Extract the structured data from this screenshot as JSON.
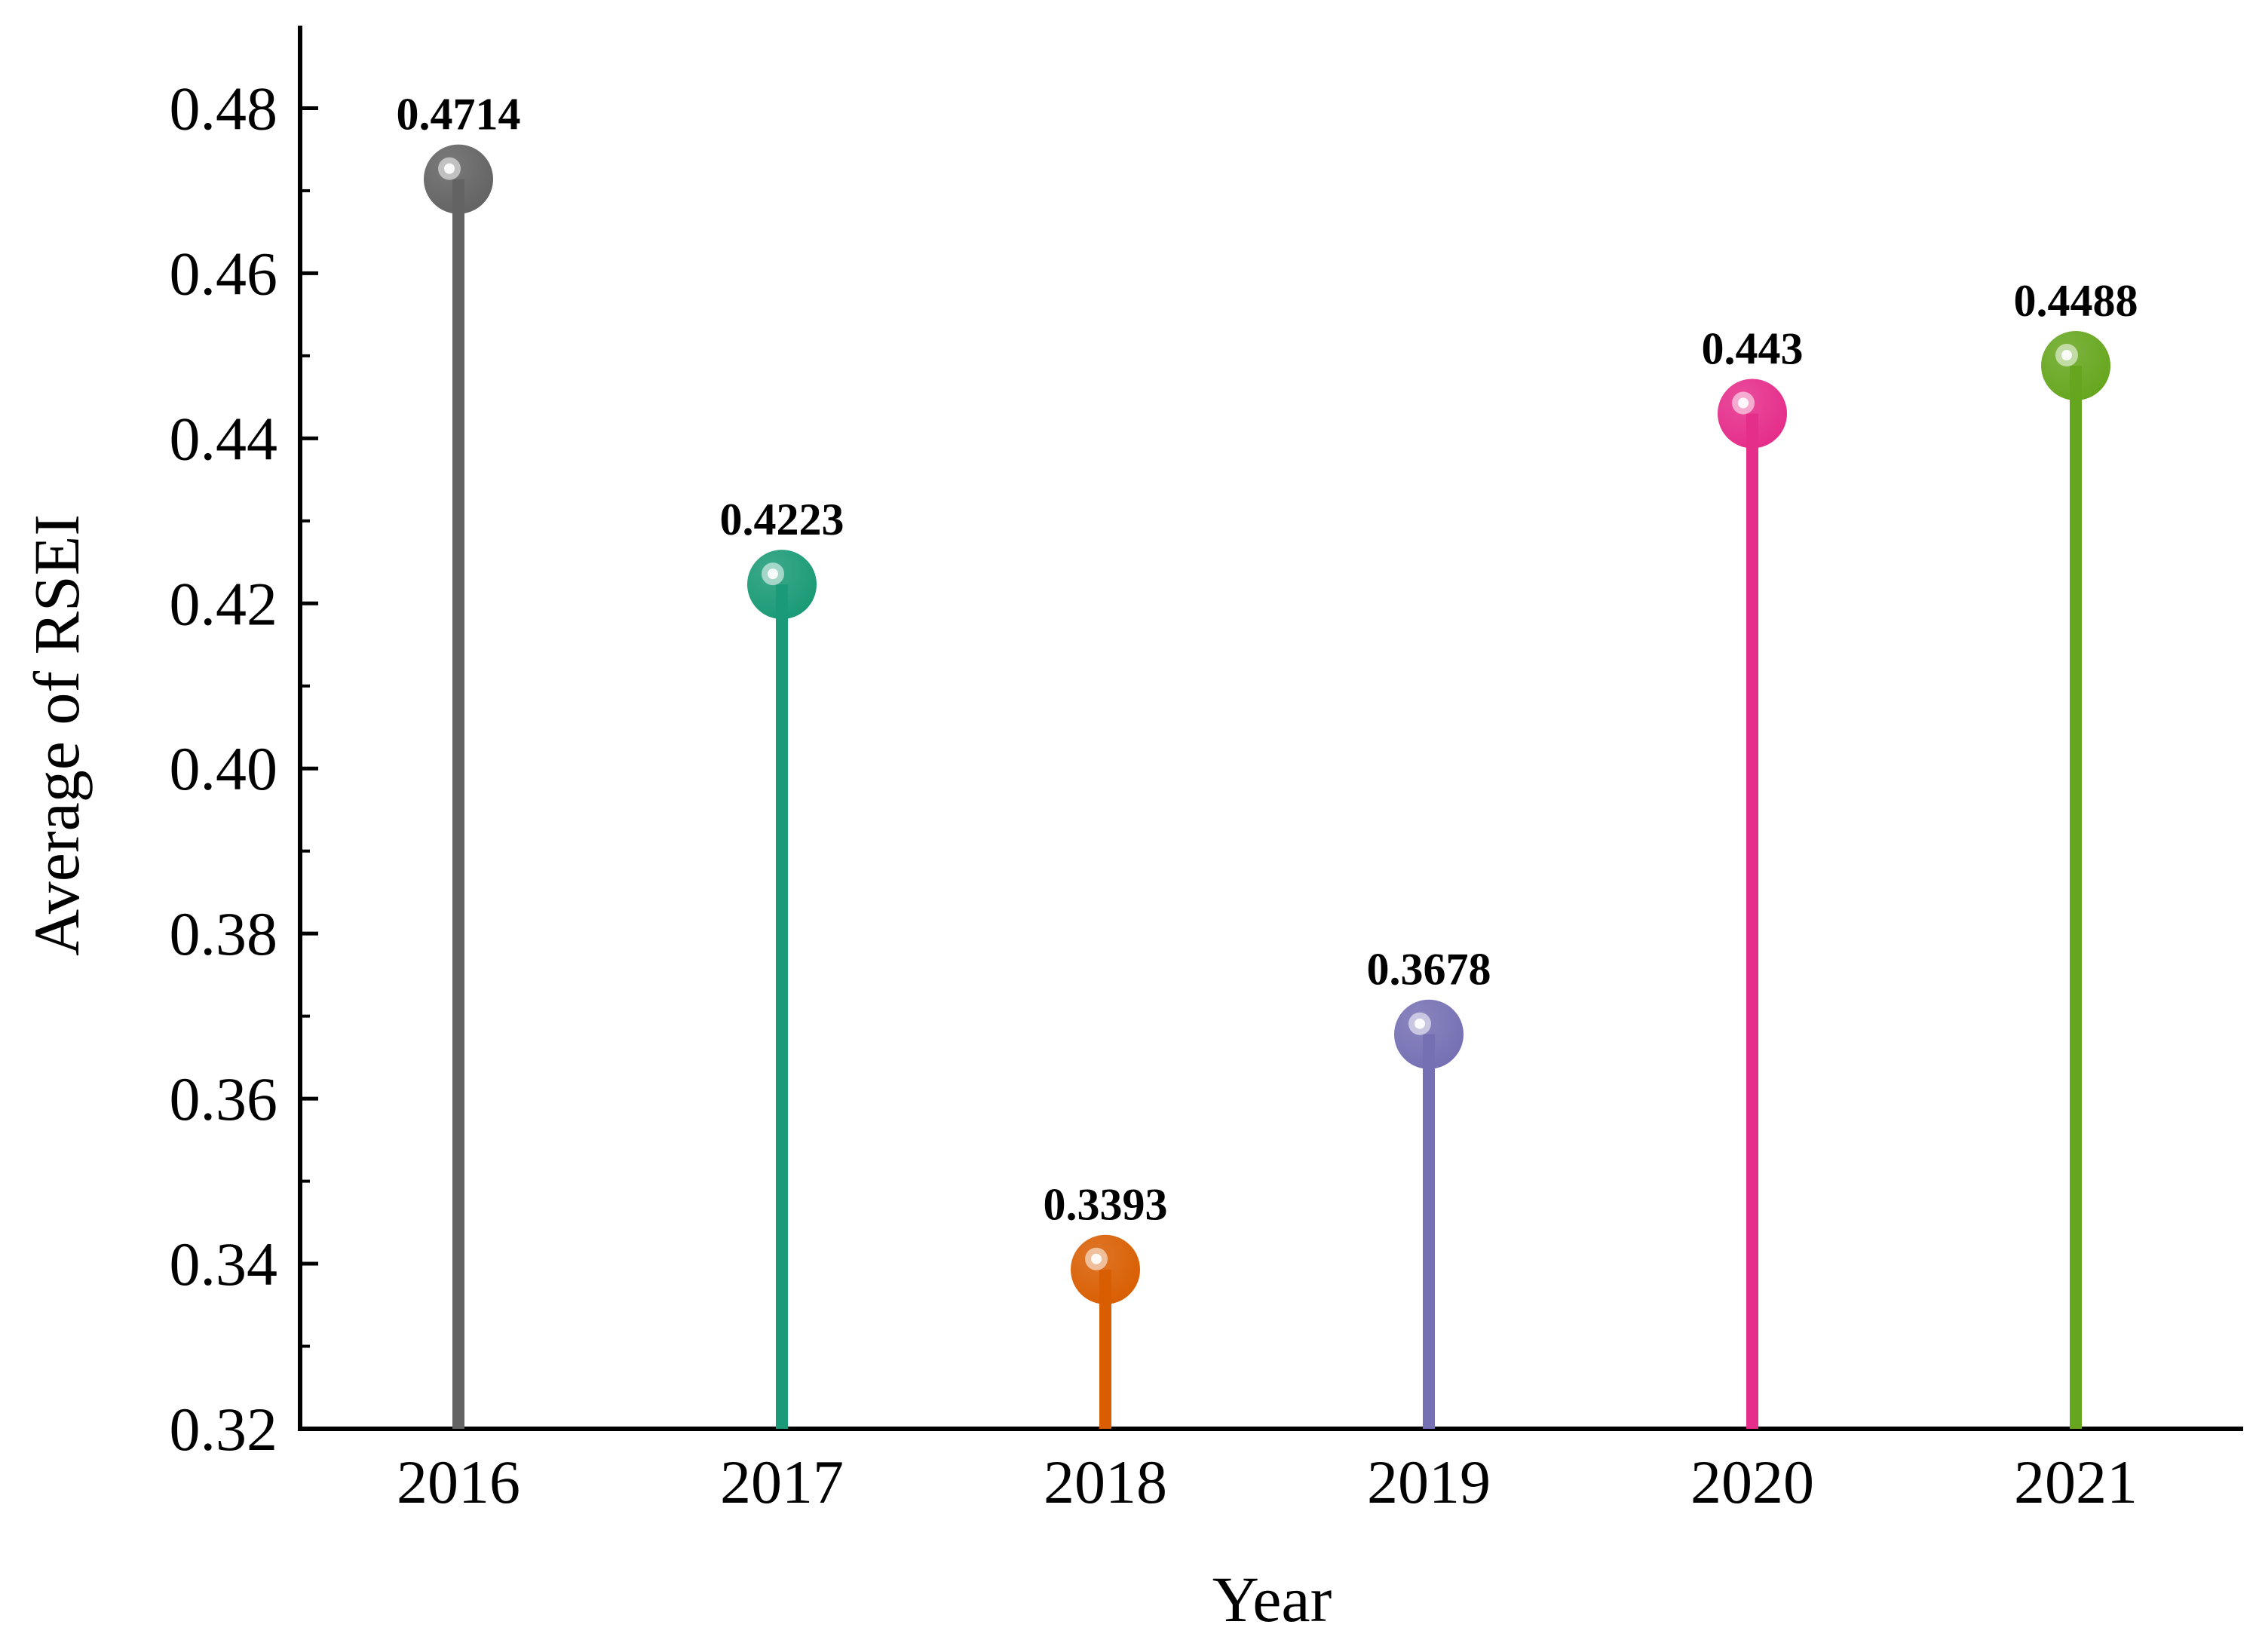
{
  "chart_data": {
    "type": "lollipop",
    "title": "",
    "xlabel": "Year",
    "ylabel": "Average of RSEI",
    "categories": [
      "2016",
      "2017",
      "2018",
      "2019",
      "2020",
      "2021"
    ],
    "values": [
      0.4714,
      0.4223,
      0.3393,
      0.3678,
      0.443,
      0.4488
    ],
    "value_labels": [
      "0.4714",
      "0.4223",
      "0.3393",
      "0.3678",
      "0.443",
      "0.4488"
    ],
    "colors": [
      "#636363",
      "#1a9a76",
      "#d95e02",
      "#7570b3",
      "#e52d8a",
      "#66a61e"
    ],
    "ylim": [
      0.32,
      0.49
    ],
    "yticks": [
      0.32,
      0.34,
      0.36,
      0.38,
      0.4,
      0.42,
      0.44,
      0.46,
      0.48
    ],
    "ytick_labels": [
      "0.32",
      "0.34",
      "0.36",
      "0.38",
      "0.40",
      "0.42",
      "0.44",
      "0.46",
      "0.48"
    ],
    "grid": false,
    "legend": "none"
  }
}
